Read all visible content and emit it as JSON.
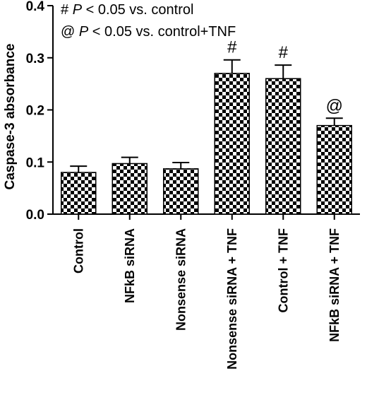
{
  "chart_data": {
    "type": "bar",
    "title": "",
    "xlabel": "",
    "ylabel": "Caspase-3 absorbance",
    "ylim": [
      0,
      0.4
    ],
    "yticks": [
      "0.0",
      "0.1",
      "0.2",
      "0.3",
      "0.4"
    ],
    "grid": false,
    "bar_fill": "checkerboard",
    "colors": {
      "bar_light": "#ffffff",
      "bar_dark": "#000000",
      "axis": "#000000"
    },
    "categories": [
      "Control",
      "NFkB siRNA",
      "Nonsense siRNA",
      "Nonsense siRNA + TNF",
      "Control + TNF",
      "NFkB siRNA + TNF"
    ],
    "values": [
      0.08,
      0.097,
      0.087,
      0.27,
      0.26,
      0.17
    ],
    "errors": [
      0.012,
      0.012,
      0.012,
      0.026,
      0.026,
      0.014
    ],
    "markers": [
      "",
      "",
      "",
      "#",
      "#",
      "@"
    ],
    "annotations": [
      {
        "symbol": "#",
        "italic": "P",
        "text": " < 0.05 vs. control"
      },
      {
        "symbol": "@",
        "italic": "P",
        "text": " < 0.05 vs. control+TNF"
      }
    ]
  }
}
